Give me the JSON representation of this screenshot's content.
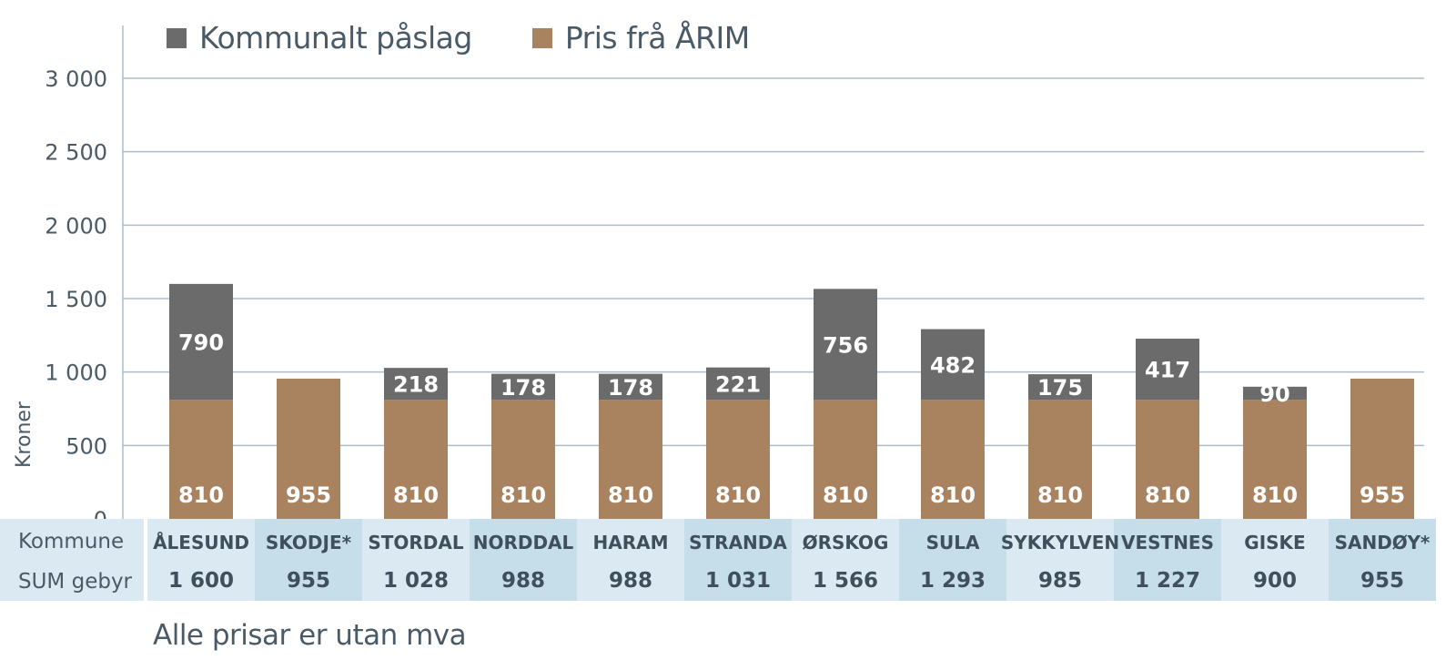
{
  "legend": {
    "kommunalt": "Kommunalt påslag",
    "arim": "Pris frå ÅRIM"
  },
  "colors": {
    "kommunalt": "#6b6b6b",
    "arim": "#a98360",
    "grid": "#aebdc9",
    "axis_text": "#4a5a66",
    "table_light": "#dbe9f2",
    "table_dark": "#c6ddea",
    "table_text": "#3f4f5c"
  },
  "table_labels": {
    "row1": "Kommune",
    "row2": "SUM gebyr"
  },
  "footnote": "Alle prisar er utan mva",
  "chart_data": {
    "type": "bar",
    "stacked": true,
    "ylabel": "Kroner",
    "xlabel": "",
    "ylim": [
      0,
      3000
    ],
    "yticks": [
      0,
      500,
      1000,
      1500,
      2000,
      2500,
      3000
    ],
    "ytick_labels": [
      "0",
      "500",
      "1 000",
      "1 500",
      "2 000",
      "2 500",
      "3 000"
    ],
    "grid": true,
    "legend_position": "top",
    "categories": [
      "ÅLESUND",
      "SKODJE*",
      "STORDAL",
      "NORDDAL",
      "HARAM",
      "STRANDA",
      "ØRSKOG",
      "SULA",
      "SYKKYLVEN",
      "VESTNES",
      "GISKE",
      "SANDØY*"
    ],
    "series": [
      {
        "name": "Pris frå ÅRIM",
        "values": [
          810,
          955,
          810,
          810,
          810,
          810,
          810,
          810,
          810,
          810,
          810,
          955
        ]
      },
      {
        "name": "Kommunalt påslag",
        "values": [
          790,
          0,
          218,
          178,
          178,
          221,
          756,
          482,
          175,
          417,
          90,
          0
        ]
      }
    ],
    "totals": [
      "1 600",
      "955",
      "1 028",
      "988",
      "988",
      "1 031",
      "1 566",
      "1 293",
      "985",
      "1 227",
      "900",
      "955"
    ]
  }
}
